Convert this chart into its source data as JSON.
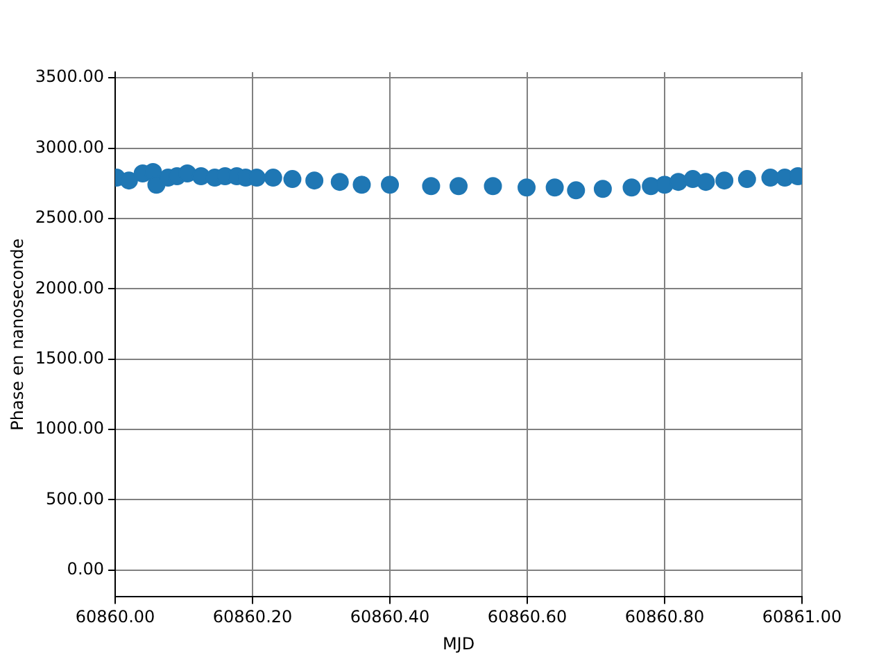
{
  "chart_data": {
    "type": "scatter",
    "xlabel": "MJD",
    "ylabel": "Phase en nanoseconde",
    "x": [
      60860.002,
      60860.02,
      60860.04,
      60860.055,
      60860.06,
      60860.077,
      60860.09,
      60860.105,
      60860.125,
      60860.145,
      60860.16,
      60860.177,
      60860.19,
      60860.206,
      60860.23,
      60860.258,
      60860.29,
      60860.327,
      60860.359,
      60860.4,
      60860.46,
      60860.5,
      60860.55,
      60860.599,
      60860.64,
      60860.671,
      60860.71,
      60860.752,
      60860.78,
      60860.8,
      60860.82,
      60860.841,
      60860.86,
      60860.887,
      60860.92,
      60860.954,
      60860.975,
      60860.994
    ],
    "values": [
      2790,
      2770,
      2820,
      2830,
      2740,
      2790,
      2800,
      2820,
      2800,
      2790,
      2800,
      2800,
      2790,
      2790,
      2790,
      2780,
      2770,
      2760,
      2740,
      2740,
      2730,
      2730,
      2730,
      2720,
      2720,
      2700,
      2710,
      2720,
      2730,
      2740,
      2760,
      2780,
      2760,
      2770,
      2780,
      2790,
      2790,
      2800
    ],
    "color": "#1f77b4",
    "marker": "circle",
    "xlim": [
      60860.0,
      60861.0
    ],
    "xticks": [
      {
        "value": 60860.0,
        "label": "60860.00"
      },
      {
        "value": 60860.2,
        "label": "60860.20"
      },
      {
        "value": 60860.4,
        "label": "60860.40"
      },
      {
        "value": 60860.6,
        "label": "60860.60"
      },
      {
        "value": 60860.8,
        "label": "60860.80"
      },
      {
        "value": 60861.0,
        "label": "60861.00"
      }
    ],
    "ylim": [
      -190,
      3540
    ],
    "yticks": [
      {
        "value": 0,
        "label": "0.00"
      },
      {
        "value": 500,
        "label": "500.00"
      },
      {
        "value": 1000,
        "label": "1000.00"
      },
      {
        "value": 1500,
        "label": "1500.00"
      },
      {
        "value": 2000,
        "label": "2000.00"
      },
      {
        "value": 2500,
        "label": "2500.00"
      },
      {
        "value": 3000,
        "label": "3000.00"
      },
      {
        "value": 3500,
        "label": "3500.00"
      }
    ],
    "grid": true
  }
}
